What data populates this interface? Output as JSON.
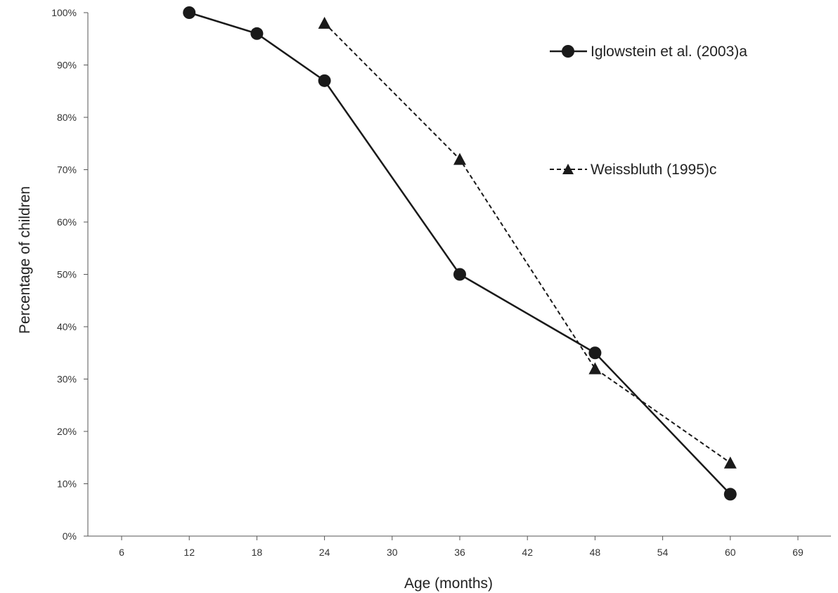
{
  "chart_data": {
    "type": "line",
    "xlabel": "Age (months)",
    "ylabel": "Percentage of children",
    "x_ticks": [
      "6",
      "12",
      "18",
      "24",
      "30",
      "36",
      "42",
      "48",
      "54",
      "60",
      "69"
    ],
    "y_ticks": [
      "0%",
      "10%",
      "20%",
      "30%",
      "40%",
      "50%",
      "60%",
      "70%",
      "80%",
      "90%",
      "100%"
    ],
    "ylim": [
      0,
      100
    ],
    "grid": false,
    "legend_position": "top-right",
    "series": [
      {
        "name": "Iglowstein et al. (2003)a",
        "marker": "circle",
        "line": "solid",
        "x": [
          12,
          18,
          24,
          36,
          48,
          60
        ],
        "y": [
          100,
          96,
          87,
          50,
          35,
          8
        ]
      },
      {
        "name": "Weissbluth  (1995)c",
        "marker": "triangle",
        "line": "dashed",
        "x": [
          24,
          36,
          48,
          60
        ],
        "y": [
          98,
          72,
          32,
          14
        ]
      }
    ]
  }
}
